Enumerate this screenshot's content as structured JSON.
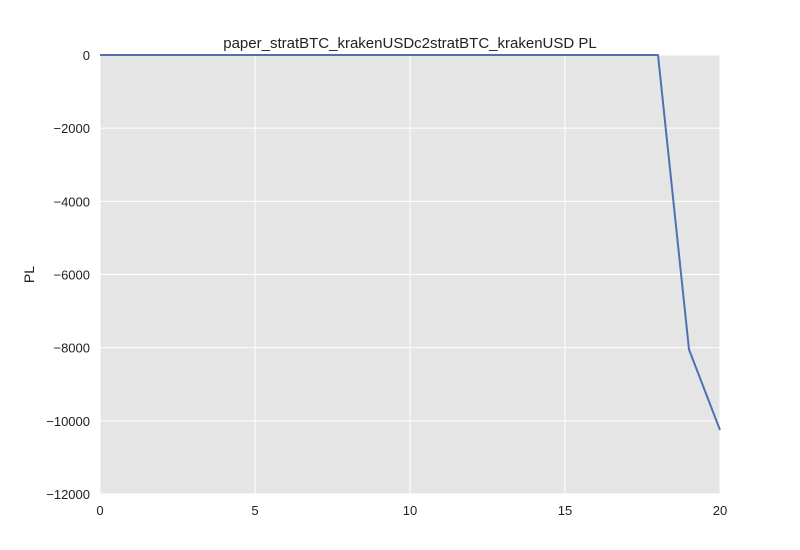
{
  "chart_data": {
    "type": "line",
    "title": "paper_stratBTC_krakenUSDc2stratBTC_krakenUSD PL",
    "xlabel": "",
    "ylabel": "PL",
    "xlim": [
      0,
      20
    ],
    "ylim": [
      -12000,
      0
    ],
    "x_ticks": [
      0,
      5,
      10,
      15,
      20
    ],
    "y_ticks": [
      0,
      -2000,
      -4000,
      -6000,
      -8000,
      -10000,
      -12000
    ],
    "x_tick_labels": [
      "0",
      "5",
      "10",
      "15",
      "20"
    ],
    "y_tick_labels": [
      "0",
      "−2000",
      "−4000",
      "−6000",
      "−8000",
      "−10000",
      "−12000"
    ],
    "grid": true,
    "series": [
      {
        "x": [
          0,
          1,
          2,
          3,
          4,
          5,
          6,
          7,
          8,
          9,
          10,
          11,
          12,
          13,
          14,
          15,
          16,
          17,
          18,
          19,
          20
        ],
        "y": [
          0,
          0,
          0,
          0,
          0,
          0,
          0,
          0,
          0,
          0,
          0,
          0,
          0,
          0,
          0,
          0,
          0,
          0,
          0,
          -8050,
          -10250
        ],
        "color": "#4c72b0"
      }
    ],
    "colors": {
      "plot_background": "#e5e5e5",
      "grid": "#ffffff"
    }
  }
}
